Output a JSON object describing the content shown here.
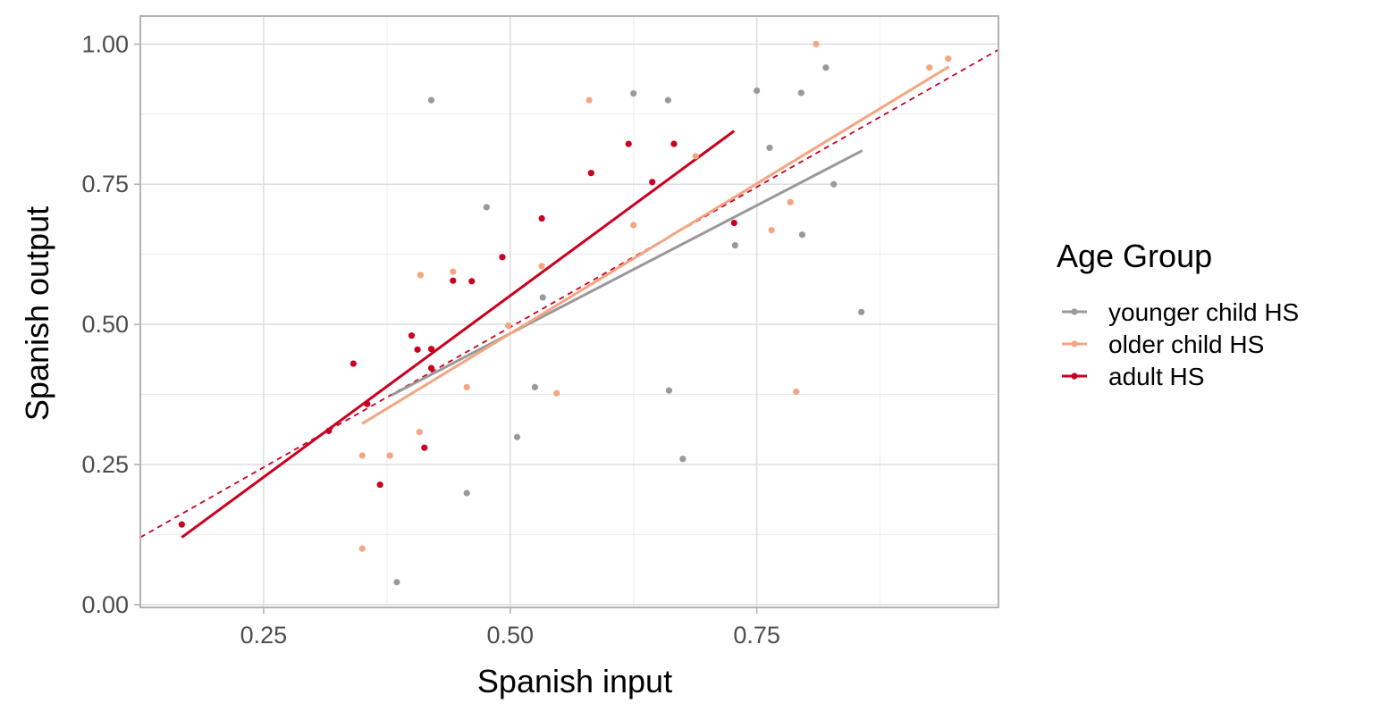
{
  "chart_data": {
    "type": "scatter",
    "xlabel": "Spanish input",
    "ylabel": "Spanish output",
    "xlim": [
      0.125,
      0.995
    ],
    "ylim": [
      -0.005,
      1.05
    ],
    "x_ticks": [
      0.25,
      0.5,
      0.75
    ],
    "x_tick_labels": [
      "0.25",
      "0.50",
      "0.75"
    ],
    "y_ticks": [
      0.0,
      0.25,
      0.5,
      0.75,
      1.0
    ],
    "y_tick_labels": [
      "0.00",
      "0.25",
      "0.50",
      "0.75",
      "1.00"
    ],
    "grid": true,
    "legend": {
      "title": "Age Group",
      "position": "right"
    },
    "series": [
      {
        "name": "younger child HS",
        "color": "#999999",
        "points": [
          [
            0.42,
            0.9
          ],
          [
            0.625,
            0.912
          ],
          [
            0.66,
            0.9
          ],
          [
            0.75,
            0.917
          ],
          [
            0.795,
            0.913
          ],
          [
            0.82,
            0.958
          ],
          [
            0.476,
            0.709
          ],
          [
            0.763,
            0.815
          ],
          [
            0.828,
            0.75
          ],
          [
            0.728,
            0.641
          ],
          [
            0.796,
            0.66
          ],
          [
            0.533,
            0.548
          ],
          [
            0.525,
            0.388
          ],
          [
            0.661,
            0.382
          ],
          [
            0.856,
            0.522
          ],
          [
            0.507,
            0.299
          ],
          [
            0.456,
            0.199
          ],
          [
            0.675,
            0.26
          ],
          [
            0.385,
            0.04
          ]
        ],
        "fit": [
          [
            0.38,
            0.374
          ],
          [
            0.857,
            0.81
          ]
        ]
      },
      {
        "name": "older child HS",
        "color": "#f4a582",
        "points": [
          [
            0.81,
            1.0
          ],
          [
            0.944,
            0.974
          ],
          [
            0.925,
            0.958
          ],
          [
            0.58,
            0.9
          ],
          [
            0.688,
            0.8
          ],
          [
            0.784,
            0.718
          ],
          [
            0.625,
            0.677
          ],
          [
            0.765,
            0.668
          ],
          [
            0.532,
            0.604
          ],
          [
            0.409,
            0.588
          ],
          [
            0.442,
            0.594
          ],
          [
            0.498,
            0.498
          ],
          [
            0.456,
            0.388
          ],
          [
            0.547,
            0.377
          ],
          [
            0.79,
            0.38
          ],
          [
            0.408,
            0.308
          ],
          [
            0.35,
            0.266
          ],
          [
            0.378,
            0.266
          ],
          [
            0.35,
            0.1
          ]
        ],
        "fit": [
          [
            0.35,
            0.323
          ],
          [
            0.945,
            0.96
          ]
        ]
      },
      {
        "name": "adult HS",
        "color": "#ca0020",
        "points": [
          [
            0.167,
            0.143
          ],
          [
            0.316,
            0.31
          ],
          [
            0.341,
            0.43
          ],
          [
            0.355,
            0.358
          ],
          [
            0.368,
            0.214
          ],
          [
            0.4,
            0.48
          ],
          [
            0.406,
            0.455
          ],
          [
            0.413,
            0.28
          ],
          [
            0.42,
            0.422
          ],
          [
            0.42,
            0.456
          ],
          [
            0.442,
            0.578
          ],
          [
            0.461,
            0.577
          ],
          [
            0.492,
            0.62
          ],
          [
            0.532,
            0.689
          ],
          [
            0.582,
            0.77
          ],
          [
            0.62,
            0.822
          ],
          [
            0.644,
            0.754
          ],
          [
            0.666,
            0.822
          ],
          [
            0.727,
            0.681
          ]
        ],
        "fit": [
          [
            0.167,
            0.12
          ],
          [
            0.727,
            0.845
          ]
        ]
      }
    ],
    "reference_line": {
      "style": "dashed",
      "color": "#ca0020",
      "points": [
        [
          0.125,
          0.12
        ],
        [
          0.995,
          0.99
        ]
      ]
    }
  }
}
